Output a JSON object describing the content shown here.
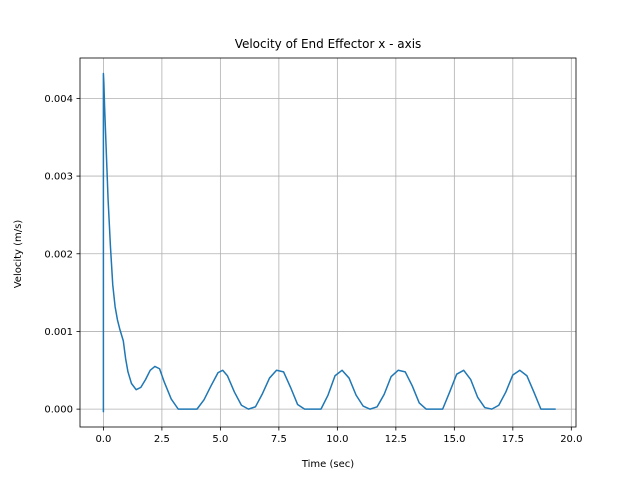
{
  "chart_data": {
    "type": "line",
    "title": "Velocity of End Effector x - axis",
    "xlabel": "Time (sec)",
    "ylabel": "Velocity (m/s)",
    "xlim": [
      -1.0,
      20.2
    ],
    "ylim": [
      -0.00023,
      0.00452
    ],
    "xticks": [
      0.0,
      2.5,
      5.0,
      7.5,
      10.0,
      12.5,
      15.0,
      17.5,
      20.0
    ],
    "xtick_labels": [
      "0.0",
      "2.5",
      "5.0",
      "7.5",
      "10.0",
      "12.5",
      "15.0",
      "17.5",
      "20.0"
    ],
    "yticks": [
      0.0,
      0.001,
      0.002,
      0.003,
      0.004
    ],
    "ytick_labels": [
      "0.000",
      "0.001",
      "0.002",
      "0.003",
      "0.004"
    ],
    "grid": true,
    "colors": {
      "series": "#1f77b4",
      "grid": "#b0b0b0",
      "axes": "#000000"
    },
    "series": [
      {
        "x": [
          0.0,
          0.0,
          0.02,
          0.05,
          0.1,
          0.15,
          0.2,
          0.3,
          0.4,
          0.5,
          0.6,
          0.7,
          0.85,
          0.95,
          1.05,
          1.2,
          1.4,
          1.6,
          1.8,
          2.0,
          2.2,
          2.4,
          2.6,
          2.9,
          3.2,
          3.6,
          4.0,
          4.3,
          4.6,
          4.9,
          5.1,
          5.3,
          5.6,
          5.9,
          6.2,
          6.5,
          6.8,
          7.1,
          7.4,
          7.7,
          8.0,
          8.3,
          8.6,
          9.0,
          9.3,
          9.6,
          9.9,
          10.2,
          10.5,
          10.8,
          11.1,
          11.4,
          11.7,
          12.0,
          12.3,
          12.6,
          12.9,
          13.2,
          13.5,
          13.8,
          14.1,
          14.5,
          14.8,
          15.1,
          15.4,
          15.7,
          16.0,
          16.3,
          16.6,
          16.9,
          17.2,
          17.5,
          17.8,
          18.1,
          18.4,
          18.7,
          19.0,
          19.3
        ],
        "y": [
          -3e-05,
          0.00432,
          0.0042,
          0.0039,
          0.0035,
          0.0031,
          0.0027,
          0.0021,
          0.0016,
          0.00132,
          0.00115,
          0.00103,
          0.00088,
          0.00065,
          0.00048,
          0.00033,
          0.00025,
          0.00028,
          0.00038,
          0.0005,
          0.00055,
          0.00052,
          0.00035,
          0.00013,
          0.0,
          0.0,
          0.0,
          0.00012,
          0.0003,
          0.00047,
          0.0005,
          0.00043,
          0.00022,
          5e-05,
          0.0,
          3e-05,
          0.0002,
          0.0004,
          0.0005,
          0.00048,
          0.00028,
          6e-05,
          0.0,
          0.0,
          0.0,
          0.00018,
          0.00043,
          0.0005,
          0.0004,
          0.00018,
          4e-05,
          0.0,
          3e-05,
          0.00019,
          0.00042,
          0.0005,
          0.00048,
          0.0003,
          8e-05,
          0.0,
          0.0,
          0.0,
          0.00022,
          0.00045,
          0.0005,
          0.00038,
          0.00015,
          2e-05,
          0.0,
          5e-05,
          0.00022,
          0.00044,
          0.0005,
          0.00043,
          0.00022,
          0.0,
          0.0,
          0.0
        ]
      }
    ]
  }
}
